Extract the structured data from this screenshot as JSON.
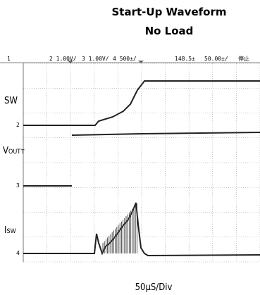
{
  "header": {
    "title": "Start-Up Waveform",
    "subtitle": "No Load"
  },
  "toolbar": {
    "ch1": "1",
    "ch2": "2  1.00V/",
    "ch3": "3  1.00V/",
    "ch4": "4  500±/",
    "position": "148.5±",
    "timebase": "50.00±/",
    "status": "停止"
  },
  "labels": {
    "sw": "SW",
    "vout": {
      "main": "V",
      "sub": "OUT"
    },
    "isw": {
      "main": "I",
      "sub": "SW"
    }
  },
  "markers": {
    "ch2": "2",
    "ch3": "3",
    "ch4": "4",
    "trigger": "T"
  },
  "footer": "50µS/Div"
}
